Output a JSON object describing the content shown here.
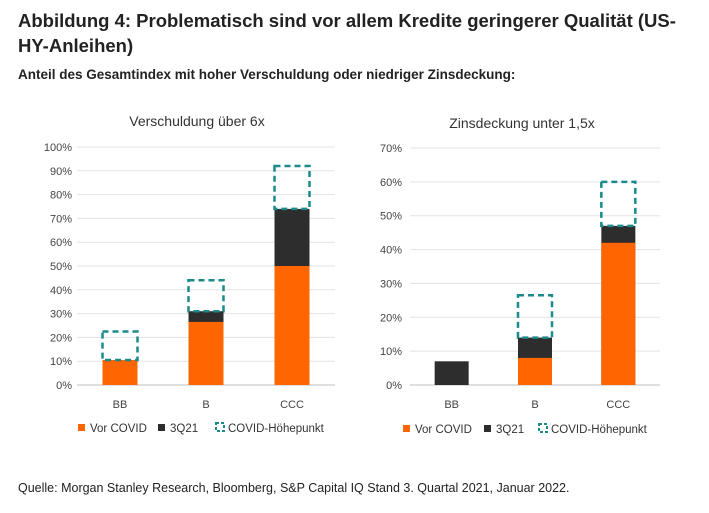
{
  "header": {
    "title": "Abbildung 4: Problematisch sind vor allem Kredite geringerer Qualität (US-HY-Anleihen)",
    "subtitle": "Anteil des Gesamtindex mit hoher Verschuldung oder niedriger Zinsdeckung:"
  },
  "footer": {
    "source": "Quelle: Morgan Stanley Research, Bloomberg, S&P Capital IQ Stand 3. Quartal 2021, Januar 2022."
  },
  "colors": {
    "vor_covid": "#ff6600",
    "q321": "#2d2d2d",
    "peak": "#1a8a8a",
    "grid": "#e3e3e3",
    "axis": "#bfbfbf"
  },
  "chart_data": [
    {
      "type": "bar",
      "title": "Verschuldung über 6x",
      "categories": [
        "BB",
        "B",
        "CCC"
      ],
      "series": [
        {
          "name": "Vor COVID",
          "values": [
            10.5,
            26.5,
            50
          ]
        },
        {
          "name": "3Q21",
          "values": [
            10.5,
            31,
            74
          ]
        },
        {
          "name": "COVID-Höhepunkt",
          "values": [
            22.5,
            44,
            92
          ]
        }
      ],
      "ylim": [
        0,
        100
      ],
      "yticks": [
        "0%",
        "10%",
        "20%",
        "30%",
        "40%",
        "50%",
        "60%",
        "70%",
        "80%",
        "90%",
        "100%"
      ],
      "legend": [
        "Vor COVID",
        "3Q21",
        "COVID-Höhepunkt"
      ]
    },
    {
      "type": "bar",
      "title": "Zinsdeckung unter 1,5x",
      "categories": [
        "BB",
        "B",
        "CCC"
      ],
      "series": [
        {
          "name": "Vor COVID",
          "values": [
            0,
            8,
            42
          ]
        },
        {
          "name": "3Q21",
          "values": [
            7,
            14,
            47
          ]
        },
        {
          "name": "COVID-Höhepunkt",
          "values": [
            null,
            26.5,
            60
          ]
        }
      ],
      "ylim": [
        0,
        70
      ],
      "yticks": [
        "0%",
        "10%",
        "20%",
        "30%",
        "40%",
        "50%",
        "60%",
        "70%"
      ],
      "legend": [
        "Vor COVID",
        "3Q21",
        "COVID-Höhepunkt"
      ]
    }
  ]
}
